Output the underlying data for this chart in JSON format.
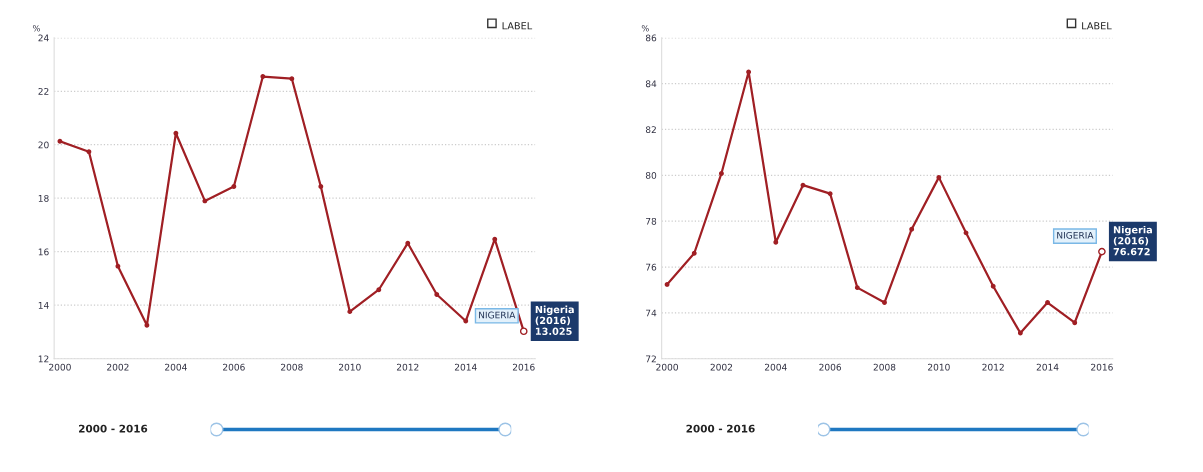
{
  "chart_data": [
    {
      "type": "line",
      "ylabel": "%",
      "x": [
        2000,
        2001,
        2002,
        2003,
        2004,
        2005,
        2006,
        2007,
        2008,
        2009,
        2010,
        2011,
        2012,
        2013,
        2014,
        2015,
        2016
      ],
      "series": [
        {
          "color": "#a01f24",
          "values": [
            20.13,
            19.74,
            15.46,
            13.25,
            20.43,
            17.9,
            18.44,
            22.55,
            22.47,
            18.44,
            13.76,
            14.58,
            16.32,
            14.4,
            13.41,
            16.47,
            13.025
          ]
        }
      ],
      "xlim": [
        1999.8,
        2016.4
      ],
      "xticks": [
        2000,
        2002,
        2004,
        2006,
        2008,
        2010,
        2012,
        2014,
        2016
      ],
      "ylim": [
        12,
        24
      ],
      "yticks": [
        12,
        14,
        16,
        18,
        20,
        22,
        24
      ],
      "grid": "y",
      "marker": "circle",
      "line_style": "solid",
      "legend": false,
      "annotations": [
        "LABEL",
        "2000 - 2016",
        "NIGERIA",
        "Nigeria\n(2016)\n13.025"
      ]
    },
    {
      "type": "line",
      "ylabel": "%",
      "x": [
        2000,
        2001,
        2002,
        2003,
        2004,
        2005,
        2006,
        2007,
        2008,
        2009,
        2010,
        2011,
        2012,
        2013,
        2014,
        2015,
        2016
      ],
      "series": [
        {
          "color": "#a01f24",
          "values": [
            75.24,
            76.6,
            80.08,
            84.51,
            77.08,
            79.57,
            79.2,
            75.1,
            74.45,
            77.65,
            79.91,
            77.49,
            75.16,
            73.12,
            74.45,
            73.57,
            76.672
          ]
        }
      ],
      "xlim": [
        1999.8,
        2016.4
      ],
      "xticks": [
        2000,
        2002,
        2004,
        2006,
        2008,
        2010,
        2012,
        2014,
        2016
      ],
      "ylim": [
        72,
        86
      ],
      "yticks": [
        72,
        74,
        76,
        78,
        80,
        82,
        84,
        86
      ],
      "grid": "y",
      "marker": "circle",
      "line_style": "solid",
      "legend": false,
      "annotations": [
        "LABEL",
        "2000 - 2016",
        "NIGERIA",
        "Nigeria\n(2016)\n76.672"
      ]
    }
  ]
}
